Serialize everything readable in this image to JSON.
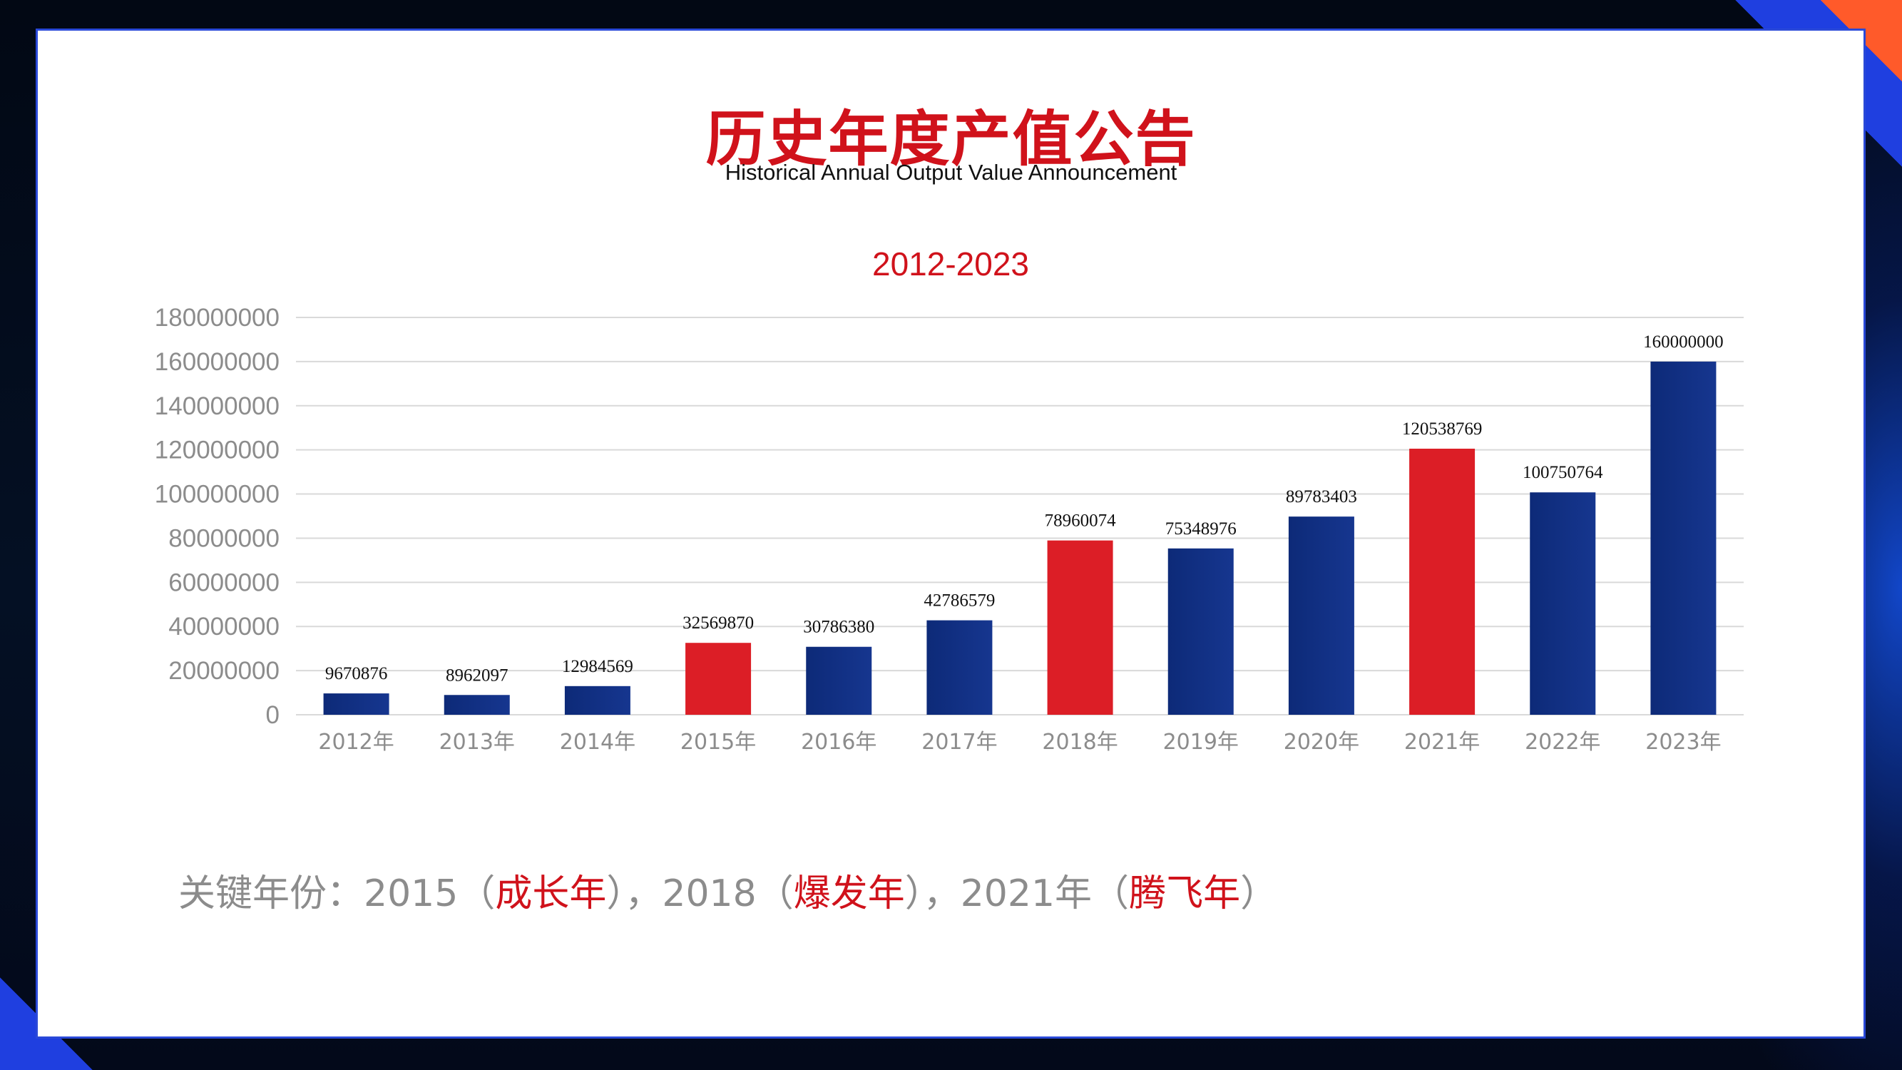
{
  "page": {
    "title": "历史年度产值公告",
    "subtitle": "Historical Annual Output Value Announcement"
  },
  "footer": {
    "prefix": "关键年份：2015（",
    "key1": "成长年",
    "mid1": "），2018（",
    "key2": "爆发年",
    "mid2": "），2021年（",
    "key3": "腾飞年",
    "suffix": "）"
  },
  "colors": {
    "accent_red": "#d0121b",
    "bar_blue_dark": "#0d2a78",
    "bar_blue_light": "#16368f",
    "bar_red": "#dc1e26",
    "grid": "#d9d9d9",
    "axis_text": "#8c8c8c"
  },
  "chart_data": {
    "type": "bar",
    "title": "2012-2023",
    "xlabel": "",
    "ylabel": "",
    "ylim": [
      0,
      180000000
    ],
    "yticks": [
      "0",
      "20000000",
      "40000000",
      "60000000",
      "80000000",
      "100000000",
      "120000000",
      "140000000",
      "160000000",
      "180000000"
    ],
    "grid": true,
    "legend": "none",
    "categories": [
      "2012年",
      "2013年",
      "2014年",
      "2015年",
      "2016年",
      "2017年",
      "2018年",
      "2019年",
      "2020年",
      "2021年",
      "2022年",
      "2023年"
    ],
    "values": [
      9670876,
      8962097,
      12984569,
      32569870,
      30786380,
      42786579,
      78960074,
      75348976,
      89783403,
      120538769,
      100750764,
      160000000
    ],
    "data_labels": [
      "9670876",
      "8962097",
      "12984569",
      "32569870",
      "30786380",
      "42786579",
      "78960074",
      "75348976",
      "89783403",
      "120538769",
      "100750764",
      "160000000"
    ],
    "highlight": [
      false,
      false,
      false,
      true,
      false,
      false,
      true,
      false,
      false,
      true,
      false,
      false
    ]
  }
}
